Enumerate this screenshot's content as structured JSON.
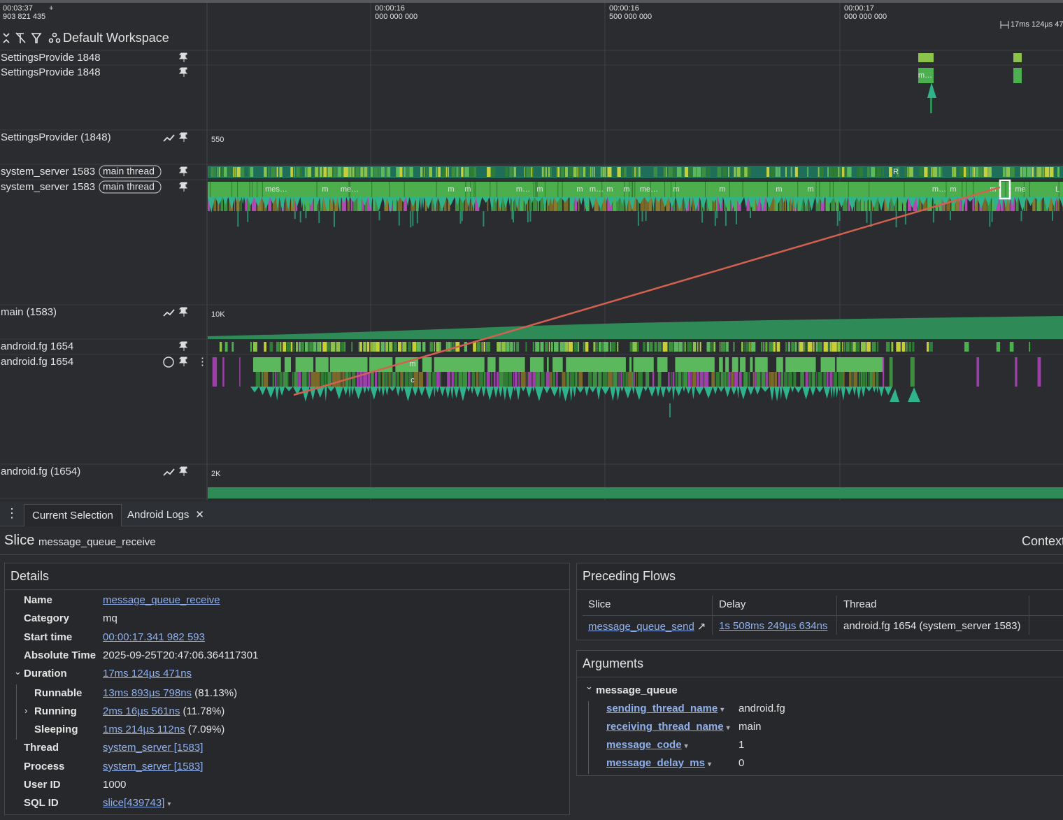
{
  "timeline": {
    "offset": "00:03:37",
    "offset_ns": "903 821 435",
    "add": "+",
    "workspace": "Default Workspace",
    "ticks": [
      {
        "time": "00:00:16",
        "ns": "000 000 000"
      },
      {
        "time": "00:00:16",
        "ns": "500 000 000"
      },
      {
        "time": "00:00:17",
        "ns": "000 000 000"
      }
    ],
    "selection_span": "17ms 124µs 47"
  },
  "tracks": [
    {
      "name": "SettingsProvide 1848"
    },
    {
      "name": "SettingsProvide 1848",
      "slice_labels": [
        "m…"
      ]
    },
    {
      "name": "SettingsProvider (1848)",
      "scale": "550"
    },
    {
      "name": "system_server 1583",
      "tag": "main thread",
      "slice_labels": [
        "R"
      ]
    },
    {
      "name": "system_server 1583",
      "tag": "main thread",
      "slice_labels": [
        "mes…",
        "m",
        "me…",
        "m",
        "m",
        "m…",
        "m",
        "m",
        "m…",
        "m",
        "m",
        "me…",
        "m",
        "m",
        "m",
        "m",
        "m…",
        "m",
        "m",
        "me",
        "L"
      ]
    },
    {
      "name": "main (1583)",
      "scale": "10K"
    },
    {
      "name": "android.fg 1654"
    },
    {
      "name": "android.fg 1654",
      "slice_labels": [
        "m",
        "c"
      ]
    },
    {
      "name": "android.fg (1654)",
      "scale": "2K"
    }
  ],
  "tabs": [
    "Current Selection",
    "Android Logs"
  ],
  "selection": {
    "kind": "Slice",
    "name": "message_queue_receive",
    "context": "Context"
  },
  "details": {
    "title": "Details",
    "rows": [
      {
        "label": "Name",
        "value": "message_queue_receive"
      },
      {
        "label": "Category",
        "value": "mq"
      },
      {
        "label": "Start time",
        "value": "00:00:17.341 982 593"
      },
      {
        "label": "Absolute Time",
        "value": "2025-09-25T20:47:06.364117301"
      },
      {
        "label": "Duration",
        "value": "17ms 124µs 471ns"
      },
      {
        "label": "Runnable",
        "value": "13ms 893µs 798ns",
        "extra": "(81.13%)"
      },
      {
        "label": "Running",
        "value": "2ms 16µs 561ns",
        "extra": "(11.78%)"
      },
      {
        "label": "Sleeping",
        "value": "1ms 214µs 112ns",
        "extra": "(7.09%)"
      },
      {
        "label": "Thread",
        "value": "system_server [1583]"
      },
      {
        "label": "Process",
        "value": "system_server [1583]"
      },
      {
        "label": "User ID",
        "value": "1000"
      },
      {
        "label": "SQL ID",
        "value": "slice[439743]"
      }
    ]
  },
  "flows": {
    "title": "Preceding Flows",
    "headers": [
      "Slice",
      "Delay",
      "Thread"
    ],
    "rows": [
      [
        "message_queue_send",
        "1s 508ms 249µs 634ns",
        "android.fg 1654 (system_server 1583)"
      ]
    ]
  },
  "arguments": {
    "title": "Arguments",
    "group": "message_queue",
    "items": [
      {
        "key": "sending_thread_name",
        "value": "android.fg"
      },
      {
        "key": "receiving_thread_name",
        "value": "main"
      },
      {
        "key": "message_code",
        "value": "1"
      },
      {
        "key": "message_delay_ms",
        "value": "0"
      }
    ]
  }
}
